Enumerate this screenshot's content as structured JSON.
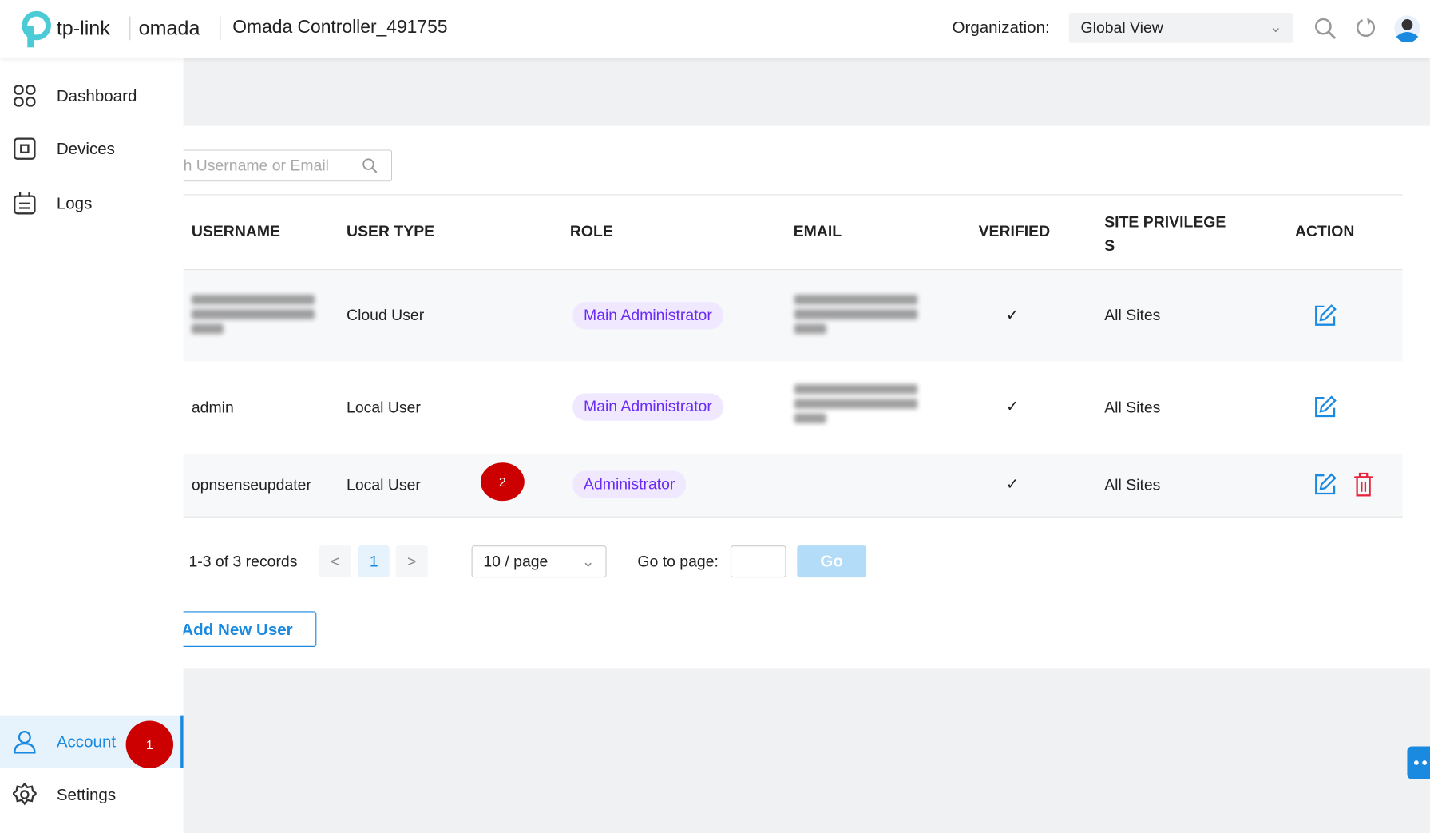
{
  "header": {
    "brand": "tp-link",
    "product": "omada",
    "title": "Omada Controller_491755",
    "org_label": "Organization:",
    "org_value": "Global View"
  },
  "sidebar": {
    "items": [
      {
        "label": "Dashboard",
        "icon": "dashboard-icon"
      },
      {
        "label": "Devices",
        "icon": "devices-icon"
      },
      {
        "label": "Logs",
        "icon": "logs-icon"
      },
      {
        "label": "Account",
        "icon": "user-icon",
        "active": true
      },
      {
        "label": "Settings",
        "icon": "gear-icon"
      }
    ],
    "badge": "1"
  },
  "search": {
    "placeholder": "h Username or Email"
  },
  "table": {
    "columns": [
      "USERNAME",
      "USER TYPE",
      "ROLE",
      "EMAIL",
      "VERIFIED",
      "SITE PRIVILEGE S",
      "ACTION"
    ],
    "rows": [
      {
        "username": "(blurred)",
        "user_type": "Cloud User",
        "role": "Main Administrator",
        "verified": true,
        "sites": "All Sites",
        "actions": [
          "edit"
        ]
      },
      {
        "username": "admin",
        "user_type": "Local User",
        "role": "Main Administrator",
        "verified": true,
        "sites": "All Sites",
        "actions": [
          "edit"
        ]
      },
      {
        "username": "opnsenseupdater",
        "user_type": "Local User",
        "role": "Administrator",
        "verified": true,
        "sites": "All Sites",
        "actions": [
          "edit",
          "delete"
        ]
      }
    ],
    "row_badge": "2",
    "check": "✓"
  },
  "pagination": {
    "summary": "1-3 of 3 records",
    "prev": "<",
    "page": "1",
    "next": ">",
    "page_size": "10 / page",
    "goto_label": "Go to page:",
    "go": "Go"
  },
  "add_user": "Add New User",
  "colors": {
    "accent": "#1a8ae0",
    "badge": "#cc0000",
    "role_pill": "#efe8ff",
    "role_text": "#6a2cf5",
    "delete": "#e8243c"
  }
}
